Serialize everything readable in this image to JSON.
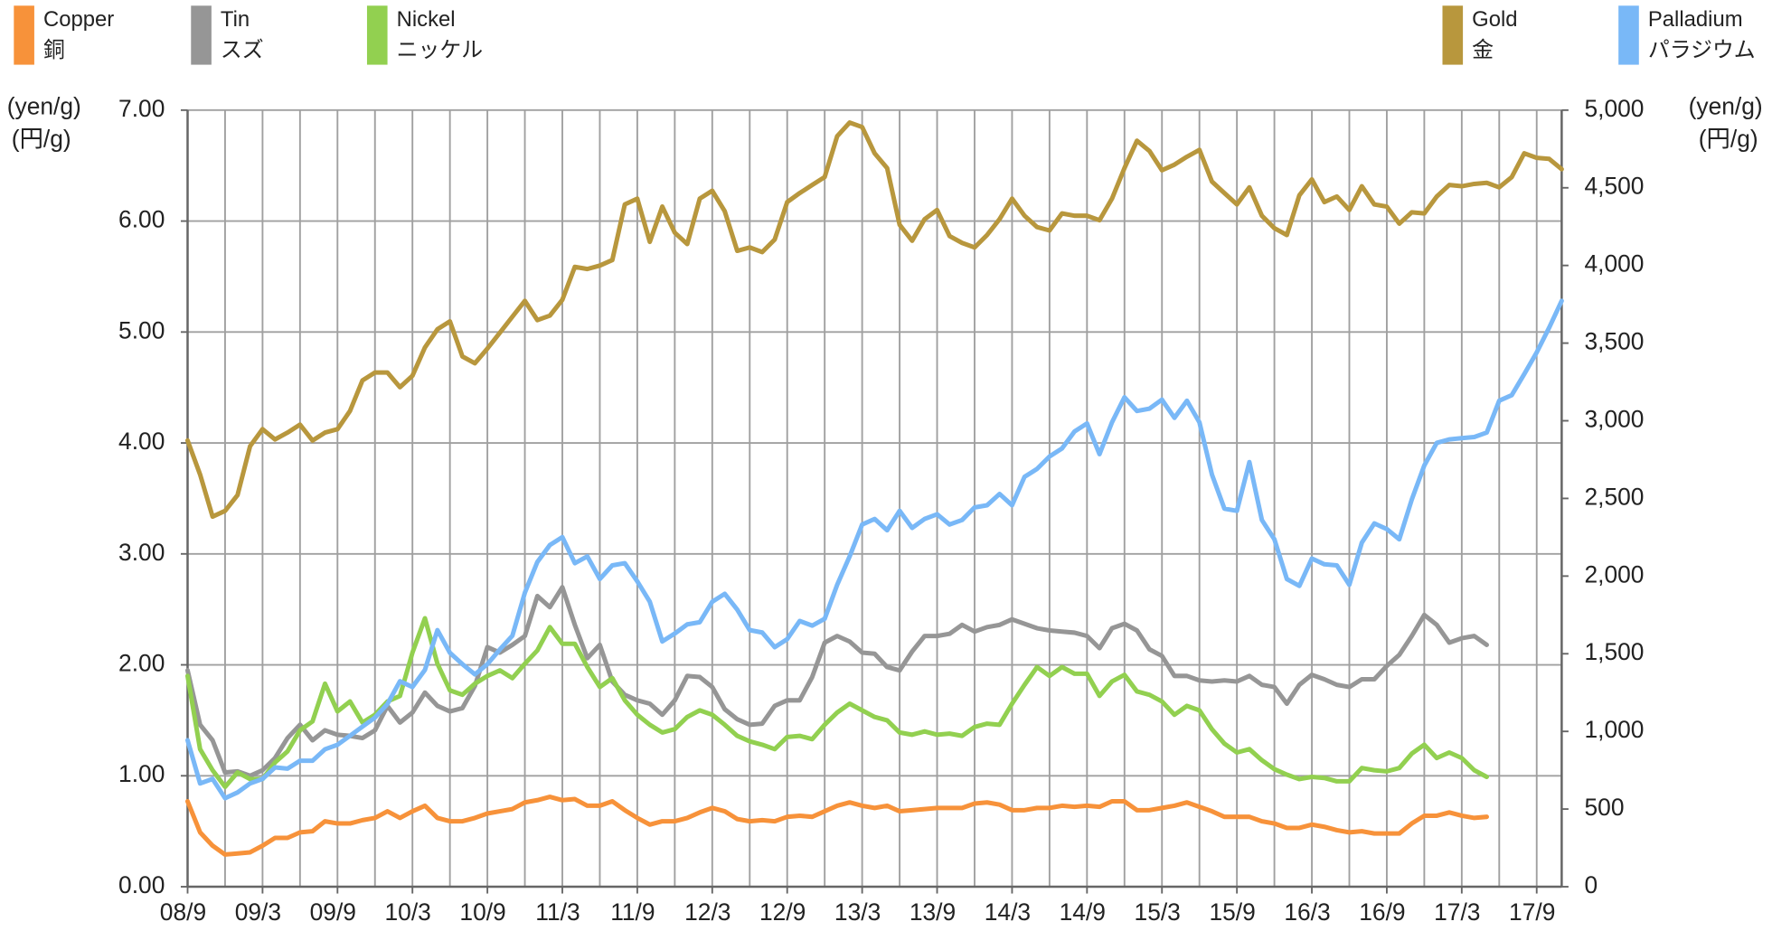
{
  "chart_data": {
    "type": "line",
    "categories": [
      "08/9",
      null,
      null,
      null,
      null,
      null,
      "09/3",
      null,
      null,
      null,
      null,
      null,
      "09/9",
      null,
      null,
      null,
      null,
      null,
      "10/3",
      null,
      null,
      null,
      null,
      null,
      "10/9",
      null,
      null,
      null,
      null,
      null,
      "11/3",
      null,
      null,
      null,
      null,
      null,
      "11/9",
      null,
      null,
      null,
      null,
      null,
      "12/3",
      null,
      null,
      null,
      null,
      null,
      "12/9",
      null,
      null,
      null,
      null,
      null,
      "13/3",
      null,
      null,
      null,
      null,
      null,
      "13/9",
      null,
      null,
      null,
      null,
      null,
      "14/3",
      null,
      null,
      null,
      null,
      null,
      "14/9",
      null,
      null,
      null,
      null,
      null,
      "15/3",
      null,
      null,
      null,
      null,
      null,
      "15/9",
      null,
      null,
      null,
      null,
      null,
      "16/3",
      null,
      null,
      null,
      null,
      null,
      "16/9",
      null,
      null,
      null,
      null,
      null,
      "17/3",
      null,
      null,
      null,
      null,
      null,
      "17/9",
      null,
      null
    ],
    "ylabel": "(yen/g)",
    "ylabel_ja": "(円/g)",
    "y2label": "(yen/g)",
    "y2label_ja": "(円/g)",
    "ylim": [
      0,
      7
    ],
    "yticks": [
      {
        "value": 0,
        "label": "0.00"
      },
      {
        "value": 1,
        "label": "1.00"
      },
      {
        "value": 2,
        "label": "2.00"
      },
      {
        "value": 3,
        "label": "3.00"
      },
      {
        "value": 4,
        "label": "4.00"
      },
      {
        "value": 5,
        "label": "5.00"
      },
      {
        "value": 6,
        "label": "6.00"
      },
      {
        "value": 7,
        "label": "7.00"
      }
    ],
    "y2lim": [
      0,
      5000
    ],
    "y2ticks": [
      0,
      500,
      {
        "value": 1000,
        "label": "1,000"
      },
      {
        "value": 1500,
        "label": "1,500"
      },
      {
        "value": 2000,
        "label": "2,000"
      },
      {
        "value": 2500,
        "label": "2,500"
      },
      {
        "value": 3000,
        "label": "3,000"
      },
      {
        "value": 3500,
        "label": "3,500"
      },
      {
        "value": 4000,
        "label": "4,000"
      },
      {
        "value": 4500,
        "label": "4,500"
      },
      {
        "value": 5000,
        "label": "5,000"
      }
    ],
    "grid": true,
    "series": [
      {
        "name": "Copper",
        "name_ja": "銅",
        "color": "#f7923a",
        "axis": "y",
        "values": [
          0.77,
          0.49,
          0.37,
          0.29,
          0.3,
          0.31,
          0.37,
          0.44,
          0.44,
          0.49,
          0.5,
          0.59,
          0.57,
          0.57,
          0.6,
          0.62,
          0.68,
          0.62,
          0.68,
          0.73,
          0.62,
          0.59,
          0.59,
          0.62,
          0.66,
          0.68,
          0.7,
          0.76,
          0.78,
          0.81,
          0.78,
          0.79,
          0.73,
          0.73,
          0.77,
          0.69,
          0.62,
          0.56,
          0.59,
          0.59,
          0.62,
          0.67,
          0.71,
          0.68,
          0.61,
          0.59,
          0.6,
          0.59,
          0.63,
          0.64,
          0.63,
          0.68,
          0.73,
          0.76,
          0.73,
          0.71,
          0.73,
          0.68,
          0.69,
          0.7,
          0.71,
          0.71,
          0.71,
          0.75,
          0.76,
          0.74,
          0.69,
          0.69,
          0.71,
          0.71,
          0.73,
          0.72,
          0.73,
          0.72,
          0.77,
          0.77,
          0.69,
          0.69,
          0.71,
          0.73,
          0.76,
          0.72,
          0.68,
          0.63,
          0.63,
          0.63,
          0.59,
          0.57,
          0.53,
          0.53,
          0.56,
          0.54,
          0.51,
          0.49,
          0.5,
          0.48,
          0.48,
          0.48,
          0.57,
          0.64,
          0.64,
          0.67,
          0.64,
          0.62,
          0.63,
          null,
          null,
          null,
          null,
          null,
          null
        ]
      },
      {
        "name": "Tin",
        "name_ja": "スズ",
        "color": "#969696",
        "axis": "y",
        "values": [
          1.95,
          1.46,
          1.32,
          1.03,
          1.04,
          1.0,
          1.05,
          1.16,
          1.34,
          1.46,
          1.32,
          1.41,
          1.37,
          1.36,
          1.34,
          1.41,
          1.63,
          1.48,
          1.57,
          1.75,
          1.63,
          1.58,
          1.61,
          1.81,
          2.16,
          2.11,
          2.18,
          2.26,
          2.62,
          2.52,
          2.7,
          2.36,
          2.06,
          2.18,
          1.85,
          1.73,
          1.68,
          1.65,
          1.55,
          1.68,
          1.9,
          1.89,
          1.8,
          1.6,
          1.51,
          1.46,
          1.47,
          1.63,
          1.68,
          1.68,
          1.89,
          2.2,
          2.26,
          2.21,
          2.11,
          2.1,
          1.98,
          1.95,
          2.12,
          2.26,
          2.26,
          2.28,
          2.36,
          2.3,
          2.34,
          2.36,
          2.41,
          2.37,
          2.33,
          2.31,
          2.3,
          2.29,
          2.26,
          2.15,
          2.33,
          2.37,
          2.31,
          2.14,
          2.08,
          1.9,
          1.9,
          1.86,
          1.85,
          1.86,
          1.85,
          1.9,
          1.82,
          1.8,
          1.65,
          1.82,
          1.91,
          1.87,
          1.82,
          1.8,
          1.87,
          1.87,
          1.99,
          2.09,
          2.26,
          2.45,
          2.36,
          2.2,
          2.24,
          2.26,
          2.18,
          null,
          null,
          null,
          null,
          null,
          null
        ]
      },
      {
        "name": "Nickel",
        "name_ja": "ニッケル",
        "color": "#92d050",
        "axis": "y",
        "values": [
          1.9,
          1.24,
          1.05,
          0.9,
          1.03,
          0.97,
          0.97,
          1.12,
          1.22,
          1.41,
          1.49,
          1.83,
          1.58,
          1.67,
          1.48,
          1.55,
          1.67,
          1.72,
          2.11,
          2.42,
          2.01,
          1.77,
          1.73,
          1.83,
          1.9,
          1.95,
          1.88,
          2.01,
          2.13,
          2.34,
          2.19,
          2.19,
          1.98,
          1.8,
          1.88,
          1.68,
          1.55,
          1.46,
          1.39,
          1.42,
          1.53,
          1.59,
          1.55,
          1.46,
          1.36,
          1.31,
          1.28,
          1.24,
          1.35,
          1.36,
          1.33,
          1.46,
          1.57,
          1.65,
          1.59,
          1.53,
          1.5,
          1.39,
          1.37,
          1.4,
          1.37,
          1.38,
          1.36,
          1.44,
          1.47,
          1.46,
          1.65,
          1.82,
          1.98,
          1.9,
          1.98,
          1.92,
          1.92,
          1.72,
          1.85,
          1.91,
          1.76,
          1.73,
          1.67,
          1.55,
          1.63,
          1.59,
          1.42,
          1.29,
          1.21,
          1.24,
          1.14,
          1.06,
          1.01,
          0.97,
          0.99,
          0.98,
          0.95,
          0.95,
          1.07,
          1.05,
          1.04,
          1.07,
          1.2,
          1.28,
          1.16,
          1.21,
          1.16,
          1.05,
          0.99,
          null,
          null,
          null,
          null,
          null,
          null
        ]
      },
      {
        "name": "Gold",
        "name_ja": "金",
        "color": "#b8973d",
        "axis": "y2",
        "values": [
          2873,
          2654,
          2383,
          2420,
          2522,
          2836,
          2946,
          2880,
          2924,
          2975,
          2873,
          2924,
          2946,
          3063,
          3260,
          3311,
          3311,
          3216,
          3290,
          3472,
          3589,
          3640,
          3414,
          3370,
          3465,
          3567,
          3670,
          3772,
          3648,
          3677,
          3779,
          3991,
          3977,
          3999,
          4035,
          4393,
          4430,
          4152,
          4379,
          4211,
          4138,
          4430,
          4481,
          4349,
          4094,
          4116,
          4086,
          4167,
          4408,
          4466,
          4518,
          4569,
          4832,
          4920,
          4891,
          4722,
          4627,
          4262,
          4159,
          4298,
          4357,
          4189,
          4145,
          4116,
          4196,
          4298,
          4430,
          4320,
          4247,
          4225,
          4335,
          4320,
          4320,
          4291,
          4430,
          4627,
          4803,
          4737,
          4613,
          4649,
          4700,
          4744,
          4540,
          4466,
          4393,
          4503,
          4320,
          4240,
          4196,
          4452,
          4554,
          4408,
          4444,
          4357,
          4510,
          4393,
          4379,
          4269,
          4342,
          4335,
          4444,
          4518,
          4510,
          4525,
          4532,
          4503,
          4569,
          4722,
          4693,
          4686,
          4620
        ]
      },
      {
        "name": "Palladium",
        "name_ja": "パラジウム",
        "color": "#79b8f7",
        "axis": "y2",
        "values": [
          943,
          665,
          694,
          570,
          607,
          665,
          694,
          768,
          760,
          811,
          811,
          885,
          914,
          972,
          1031,
          1089,
          1177,
          1323,
          1286,
          1396,
          1652,
          1506,
          1433,
          1367,
          1433,
          1528,
          1616,
          1893,
          2091,
          2200,
          2251,
          2083,
          2127,
          1981,
          2069,
          2083,
          1966,
          1835,
          1579,
          1630,
          1689,
          1703,
          1835,
          1886,
          1784,
          1652,
          1637,
          1542,
          1594,
          1711,
          1681,
          1725,
          1944,
          2127,
          2332,
          2368,
          2295,
          2420,
          2310,
          2368,
          2398,
          2332,
          2361,
          2442,
          2456,
          2529,
          2456,
          2639,
          2690,
          2770,
          2822,
          2931,
          2983,
          2785,
          2990,
          3151,
          3063,
          3078,
          3136,
          3019,
          3129,
          2990,
          2654,
          2434,
          2420,
          2734,
          2361,
          2237,
          1981,
          1937,
          2113,
          2076,
          2069,
          1944,
          2215,
          2339,
          2303,
          2237,
          2493,
          2712,
          2858,
          2880,
          2888,
          2895,
          2924,
          3129,
          3165,
          3300,
          3440,
          3600,
          3772
        ]
      }
    ]
  }
}
